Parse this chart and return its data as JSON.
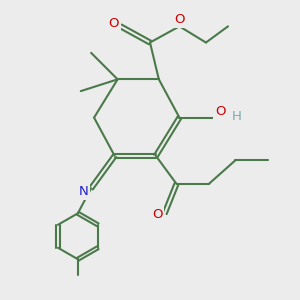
{
  "bg_color": "#ececec",
  "bond_color": "#4a7a4a",
  "bond_width": 1.5,
  "dbl_sep": 0.07,
  "atom_colors": {
    "O": "#cc0000",
    "N": "#2020cc",
    "H": "#7aadad",
    "C": "#4a7a4a"
  },
  "fs": 9.5
}
